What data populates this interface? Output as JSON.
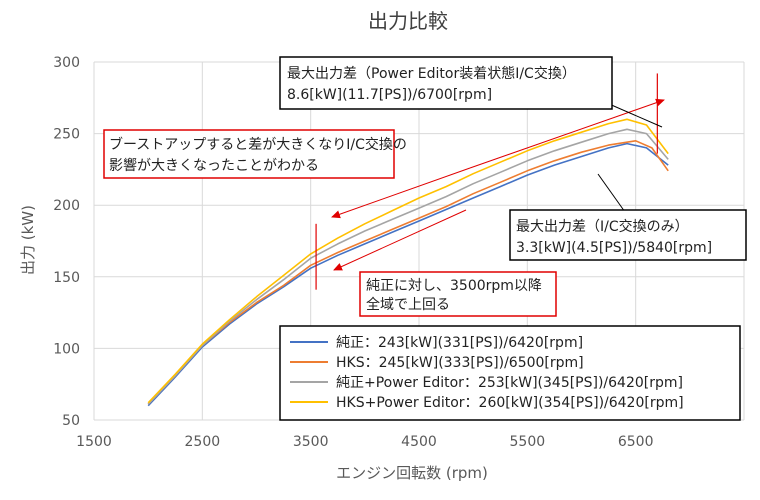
{
  "chart_data": {
    "type": "line",
    "title": "出力比較",
    "xlabel": "エンジン回転数 (rpm)",
    "ylabel": "出力 (kW)",
    "xlim": [
      1500,
      7500
    ],
    "ylim": [
      50,
      300
    ],
    "xticks": [
      "1500",
      "2500",
      "3500",
      "4500",
      "5500",
      "6500"
    ],
    "yticks": [
      "50",
      "100",
      "150",
      "200",
      "250",
      "300"
    ],
    "grid": true,
    "legend_position": "bottom-right",
    "series": [
      {
        "name": "純正：243[kW](331[PS])/6420[rpm]",
        "color": "#4472C4",
        "x": [
          2000,
          2250,
          2500,
          2750,
          3000,
          3250,
          3500,
          3750,
          4000,
          4250,
          4500,
          4750,
          5000,
          5250,
          5500,
          5750,
          6000,
          6250,
          6420,
          6600,
          6800
        ],
        "y": [
          60,
          80,
          101,
          117,
          131,
          143,
          156,
          165,
          173,
          181,
          189,
          197,
          205,
          213,
          221,
          228,
          234,
          240,
          243,
          240,
          228
        ]
      },
      {
        "name": "HKS：245[kW](333[PS])/6500[rpm]",
        "color": "#ED7D31",
        "x": [
          2000,
          2250,
          2500,
          2750,
          3000,
          3250,
          3500,
          3750,
          4000,
          4250,
          4500,
          4750,
          5000,
          5250,
          5500,
          5750,
          6000,
          6250,
          6500,
          6650,
          6800
        ],
        "y": [
          61,
          81,
          102,
          118,
          132,
          144,
          158,
          167,
          175,
          183,
          191,
          199,
          208,
          216,
          224,
          231,
          237,
          242,
          245,
          240,
          224
        ]
      },
      {
        "name": "純正+Power Editor：253[kW](345[PS])/6420[rpm]",
        "color": "#A5A5A5",
        "x": [
          2000,
          2250,
          2500,
          2750,
          3000,
          3250,
          3500,
          3750,
          4000,
          4250,
          4500,
          4750,
          5000,
          5250,
          5500,
          5750,
          6000,
          6250,
          6420,
          6600,
          6800
        ],
        "y": [
          61,
          81,
          102,
          119,
          134,
          148,
          163,
          173,
          182,
          190,
          198,
          206,
          215,
          223,
          231,
          238,
          244,
          250,
          253,
          250,
          232
        ]
      },
      {
        "name": "HKS+Power Editor：260[kW](354[PS])/6420[rpm]",
        "color": "#FFC000",
        "x": [
          2000,
          2250,
          2500,
          2750,
          3000,
          3250,
          3500,
          3750,
          4000,
          4250,
          4500,
          4750,
          5000,
          5250,
          5500,
          5750,
          6000,
          6250,
          6420,
          6600,
          6800
        ],
        "y": [
          62,
          82,
          103,
          120,
          136,
          151,
          166,
          177,
          187,
          196,
          205,
          213,
          222,
          230,
          238,
          245,
          251,
          257,
          260,
          256,
          236
        ]
      }
    ],
    "annotations": [
      {
        "lines": [
          "最大出力差（Power Editor装着状態I/C交換）",
          "8.6[kW](11.7[PS])/6700[rpm]"
        ],
        "border": "#000000"
      },
      {
        "lines": [
          "ブーストアップすると差が大きくなりI/C交換の",
          "影響が大きくなったことがわかる"
        ],
        "border": "#e00000"
      },
      {
        "lines": [
          "最大出力差（I/C交換のみ）",
          "3.3[kW](4.5[PS])/5840[rpm]"
        ],
        "border": "#000000"
      },
      {
        "lines": [
          "純正に対し、3500rpm以降",
          "全域で上回る"
        ],
        "border": "#e00000"
      }
    ],
    "marker_lines": [
      {
        "x": 3550,
        "y_from": 141,
        "y_to": 187,
        "color": "#e00000"
      },
      {
        "x": 6700,
        "y_from": 236,
        "y_to": 292,
        "color": "#e00000"
      }
    ]
  }
}
